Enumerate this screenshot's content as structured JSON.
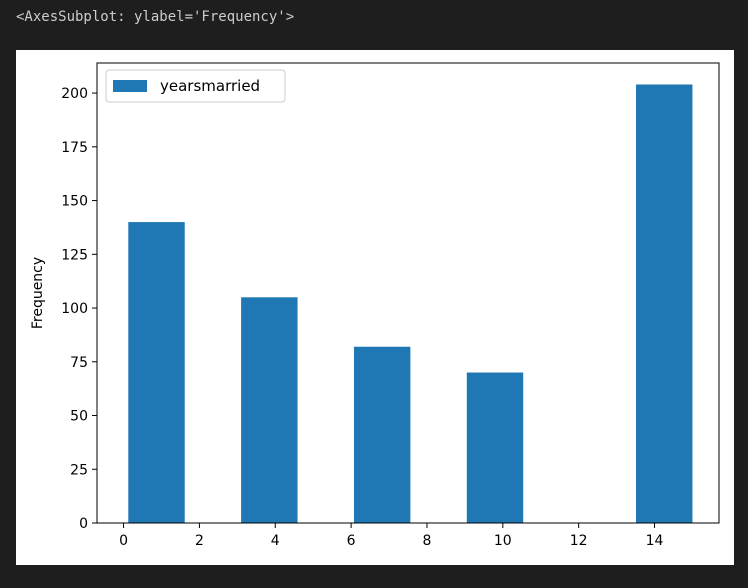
{
  "output": {
    "repr": "<AxesSubplot: ylabel='Frequency'>"
  },
  "chart_data": {
    "type": "bar",
    "title": "",
    "xlabel": "",
    "ylabel": "Frequency",
    "xlim": [
      -0.7,
      15.7
    ],
    "ylim": [
      0,
      214
    ],
    "xticks": [
      0,
      2,
      4,
      6,
      8,
      10,
      12,
      14
    ],
    "yticks": [
      0,
      25,
      50,
      75,
      100,
      125,
      150,
      175,
      200
    ],
    "legend_position": "upper-left",
    "series": [
      {
        "name": "yearsmarried",
        "color": "#1f77b4",
        "bins": [
          {
            "x0": 0.125,
            "x1": 1.6125,
            "value": 140
          },
          {
            "x0": 3.1,
            "x1": 4.5875,
            "value": 105
          },
          {
            "x0": 6.075,
            "x1": 7.5625,
            "value": 82
          },
          {
            "x0": 9.05,
            "x1": 10.5375,
            "value": 70
          },
          {
            "x0": 12.025,
            "x1": 13.5125,
            "value": 0
          },
          {
            "x0": 13.5125,
            "x1": 15.0,
            "value": 204
          }
        ]
      }
    ],
    "grid": false
  }
}
